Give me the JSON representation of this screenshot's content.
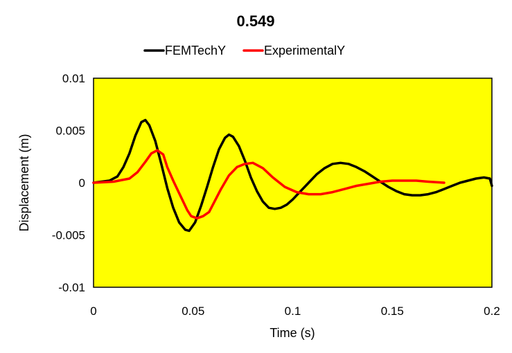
{
  "chart_data": {
    "type": "line",
    "title": "0.549",
    "xlabel": "Time (s)",
    "ylabel": "Displacement (m)",
    "xlim": [
      0,
      0.2
    ],
    "ylim": [
      -0.01,
      0.01
    ],
    "x_ticks": [
      0,
      0.05,
      0.1,
      0.15,
      0.2
    ],
    "x_tick_labels": [
      "0",
      "0.05",
      "0.1",
      "0.15",
      "0.2"
    ],
    "y_ticks": [
      0.01,
      0.005,
      0,
      -0.005,
      -0.01
    ],
    "y_tick_labels": [
      "0.01",
      "0.005",
      "0",
      "-0.005",
      "-0.01"
    ],
    "grid": false,
    "legend_position": "top",
    "plot_background": "#FFFF00",
    "series": [
      {
        "name": "FEMTechY",
        "color": "#000000",
        "x": [
          0,
          0.008,
          0.012,
          0.015,
          0.018,
          0.021,
          0.024,
          0.026,
          0.028,
          0.031,
          0.034,
          0.037,
          0.04,
          0.043,
          0.046,
          0.048,
          0.051,
          0.054,
          0.057,
          0.06,
          0.063,
          0.066,
          0.068,
          0.07,
          0.073,
          0.076,
          0.079,
          0.082,
          0.085,
          0.088,
          0.091,
          0.094,
          0.097,
          0.1,
          0.104,
          0.108,
          0.112,
          0.116,
          0.12,
          0.124,
          0.128,
          0.132,
          0.136,
          0.14,
          0.144,
          0.148,
          0.152,
          0.156,
          0.16,
          0.164,
          0.168,
          0.172,
          0.176,
          0.18,
          0.184,
          0.188,
          0.192,
          0.196,
          0.199,
          0.2
        ],
        "y": [
          0,
          0.0002,
          0.0006,
          0.0015,
          0.0028,
          0.0045,
          0.0058,
          0.006,
          0.0055,
          0.004,
          0.0018,
          -0.0005,
          -0.0024,
          -0.0038,
          -0.0045,
          -0.0046,
          -0.0038,
          -0.0022,
          -0.0004,
          0.0015,
          0.0032,
          0.0043,
          0.0046,
          0.0044,
          0.0035,
          0.0021,
          0.0005,
          -0.0008,
          -0.0018,
          -0.0024,
          -0.0025,
          -0.0024,
          -0.0021,
          -0.0016,
          -0.0008,
          0.0,
          0.0008,
          0.0014,
          0.0018,
          0.0019,
          0.0018,
          0.0015,
          0.0011,
          0.0006,
          0.0001,
          -0.0004,
          -0.0008,
          -0.0011,
          -0.0012,
          -0.0012,
          -0.0011,
          -0.0009,
          -0.0006,
          -0.0003,
          0.0,
          0.0002,
          0.0004,
          0.0005,
          0.0004,
          -0.0003
        ]
      },
      {
        "name": "ExperimentalY",
        "color": "#FF0000",
        "x": [
          0,
          0.01,
          0.018,
          0.022,
          0.026,
          0.029,
          0.032,
          0.035,
          0.037,
          0.04,
          0.043,
          0.045,
          0.047,
          0.049,
          0.052,
          0.055,
          0.058,
          0.061,
          0.064,
          0.068,
          0.072,
          0.076,
          0.08,
          0.085,
          0.09,
          0.096,
          0.102,
          0.108,
          0.114,
          0.12,
          0.126,
          0.132,
          0.138,
          0.144,
          0.15,
          0.156,
          0.162,
          0.168,
          0.176
        ],
        "y": [
          0,
          0.0001,
          0.0004,
          0.001,
          0.002,
          0.0028,
          0.0031,
          0.0027,
          0.0015,
          0.0002,
          -0.001,
          -0.0018,
          -0.0026,
          -0.0032,
          -0.0034,
          -0.0032,
          -0.0028,
          -0.0017,
          -0.0006,
          0.0007,
          0.0015,
          0.0018,
          0.0019,
          0.0014,
          0.0005,
          -0.0004,
          -0.0009,
          -0.0011,
          -0.0011,
          -0.0009,
          -0.0006,
          -0.0003,
          -0.0001,
          0.0001,
          0.0002,
          0.0002,
          0.0002,
          0.0001,
          0.0
        ]
      }
    ]
  }
}
